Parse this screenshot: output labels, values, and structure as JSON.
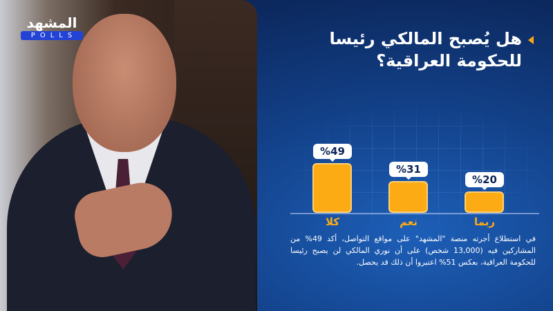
{
  "logo": {
    "arabic": "المشهد",
    "polls": "POLLS"
  },
  "title": {
    "line1": "هل يُصبح المالكي رئيسا",
    "line2": "للحكومة العراقية؟"
  },
  "chart_data": {
    "type": "bar",
    "categories": [
      "كلا",
      "نعم",
      "ربما"
    ],
    "values": [
      49,
      31,
      20
    ],
    "data_labels": [
      "%49",
      "%31",
      "%20"
    ],
    "ylim": [
      0,
      55
    ],
    "grid": true,
    "bar_color": "#fdab15"
  },
  "description": "في استطلاع أجرته منصة \"المشهد\" على مواقع التواصل، أكد 49% من المشاركين فيه (13,000 شخص) على أن نوري المالكي لن يصبح رئيسا للحكومة العراقية، بعكس 51% اعتبروا أن ذلك قد يحصل."
}
